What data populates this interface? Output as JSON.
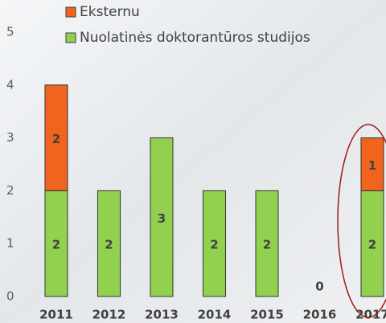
{
  "chart_data": {
    "type": "stacked_bar",
    "categories": [
      "2011",
      "2012",
      "2013",
      "2014",
      "2015",
      "2016",
      "2017"
    ],
    "series": [
      {
        "name": "Nuolatinės doktorantūros studijos",
        "color": "#92d050",
        "values": [
          2,
          2,
          3,
          2,
          2,
          0,
          2
        ]
      },
      {
        "name": "Eksternu",
        "color": "#f0641e",
        "values": [
          2,
          null,
          null,
          null,
          null,
          null,
          1
        ]
      }
    ],
    "ylim": [
      0,
      5
    ],
    "yticks": [
      0,
      1,
      2,
      3,
      4,
      5
    ],
    "grid": false
  }
}
